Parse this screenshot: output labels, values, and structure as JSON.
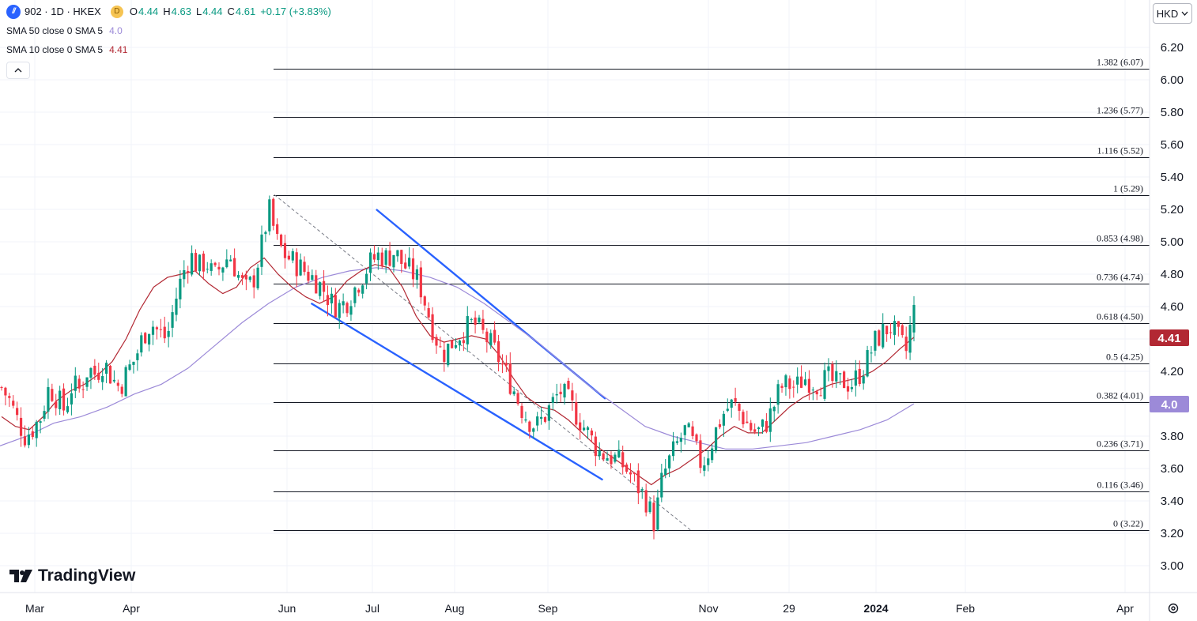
{
  "header": {
    "symbol_line": "902 · 1D · HKEX",
    "d_badge": "D",
    "open_label": "O",
    "open_value": "4.44",
    "high_label": "H",
    "high_value": "4.63",
    "low_label": "L",
    "low_value": "4.44",
    "close_label": "C",
    "close_value": "4.61",
    "change": "+0.17 (+3.83%)",
    "sma50_label": "SMA 50 close 0 SMA 5",
    "sma50_value": "4.0",
    "sma10_label": "SMA 10 close 0 SMA 5",
    "sma10_value": "4.41",
    "collapse_icon": "chevron-up-icon"
  },
  "currency_button": "HKD",
  "currency_chevron": "chevron-down-icon",
  "logo_text": "TradingView",
  "settings_icon": "gear-icon",
  "colors": {
    "up": "#089981",
    "down": "#f23645",
    "sma10": "#b22833",
    "sma50": "#9c8ad8",
    "trendline": "#2962ff",
    "fib_line": "#131722",
    "sma10_tag": "#b22833",
    "sma50_tag": "#9c8ad8"
  },
  "chart_data": {
    "type": "candlestick",
    "title": "902 · 1D · HKEX",
    "ylim": [
      2.88,
      6.32
    ],
    "y_ticks": [
      "6.20",
      "6.00",
      "5.80",
      "5.60",
      "5.40",
      "5.20",
      "5.00",
      "4.80",
      "4.60",
      "4.40",
      "4.20",
      "4.00",
      "3.80",
      "3.60",
      "3.40",
      "3.20",
      "3.00"
    ],
    "x_tick_labels": [
      {
        "label": "Mar",
        "bold": false
      },
      {
        "label": "Apr",
        "bold": false
      },
      {
        "label": "Jun",
        "bold": false
      },
      {
        "label": "Jul",
        "bold": false
      },
      {
        "label": "Aug",
        "bold": false
      },
      {
        "label": "Sep",
        "bold": false
      },
      {
        "label": "Nov",
        "bold": false
      },
      {
        "label": "29",
        "bold": false
      },
      {
        "label": "2024",
        "bold": true
      },
      {
        "label": "Feb",
        "bold": false
      },
      {
        "label": "Apr",
        "bold": false
      }
    ],
    "price_tags": [
      {
        "value": 4.41,
        "label": "4.41",
        "series": "SMA 10"
      },
      {
        "value": 4.0,
        "label": "4.0",
        "series": "SMA 50"
      }
    ],
    "fib_levels": [
      {
        "ratio": "1.382",
        "price": 6.07,
        "label": "1.382 (6.07)"
      },
      {
        "ratio": "1.236",
        "price": 5.77,
        "label": "1.236 (5.77)"
      },
      {
        "ratio": "1.116",
        "price": 5.52,
        "label": "1.116 (5.52)"
      },
      {
        "ratio": "1",
        "price": 5.29,
        "label": "1 (5.29)"
      },
      {
        "ratio": "0.853",
        "price": 4.98,
        "label": "0.853 (4.98)"
      },
      {
        "ratio": "0.736",
        "price": 4.74,
        "label": "0.736 (4.74)"
      },
      {
        "ratio": "0.618",
        "price": 4.5,
        "label": "0.618 (4.50)"
      },
      {
        "ratio": "0.5",
        "price": 4.25,
        "label": "0.5 (4.25)"
      },
      {
        "ratio": "0.382",
        "price": 4.01,
        "label": "0.382 (4.01)"
      },
      {
        "ratio": "0.236",
        "price": 3.71,
        "label": "0.236 (3.71)"
      },
      {
        "ratio": "0.116",
        "price": 3.46,
        "label": "0.116 (3.46)"
      },
      {
        "ratio": "0",
        "price": 3.22,
        "label": "0 (3.22)"
      }
    ],
    "candle_close_anchors": [
      4.1,
      4.02,
      3.9,
      3.8,
      3.85,
      3.92,
      4.1,
      4.04,
      3.96,
      4.12,
      4.08,
      4.22,
      4.18,
      4.26,
      4.16,
      4.1,
      4.2,
      4.28,
      4.42,
      4.5,
      4.44,
      4.4,
      4.62,
      4.8,
      4.92,
      4.84,
      4.88,
      4.78,
      4.86,
      4.92,
      4.8,
      4.7,
      4.76,
      4.96,
      5.2,
      5.0,
      4.92,
      4.88,
      4.84,
      4.8,
      4.76,
      4.7,
      4.62,
      4.6,
      4.64,
      4.72,
      4.8,
      4.88,
      4.92,
      4.9,
      4.94,
      4.86,
      4.82,
      4.76,
      4.6,
      4.44,
      4.3,
      4.36,
      4.42,
      4.46,
      4.5,
      4.44,
      4.38,
      4.3,
      4.2,
      4.1,
      3.98,
      3.9,
      3.86,
      3.92,
      4.0,
      4.08,
      4.02,
      3.94,
      3.86,
      3.78,
      3.7,
      3.68,
      3.66,
      3.62,
      3.56,
      3.48,
      3.4,
      3.26,
      3.54,
      3.66,
      3.76,
      3.84,
      3.74,
      3.62,
      3.72,
      3.86,
      3.96,
      4.0,
      3.94,
      3.86,
      3.82,
      3.86,
      3.96,
      4.1,
      4.12,
      4.1,
      4.16,
      4.14,
      4.12,
      4.16,
      4.12,
      4.14,
      4.12,
      4.18,
      4.26,
      4.38,
      4.44,
      4.48,
      4.4,
      4.32,
      4.61
    ],
    "sma10_anchors": [
      3.92,
      3.86,
      3.84,
      3.92,
      4.02,
      4.08,
      4.12,
      4.18,
      4.26,
      4.4,
      4.58,
      4.72,
      4.78,
      4.8,
      4.82,
      4.74,
      4.68,
      4.72,
      4.84,
      4.9,
      4.8,
      4.72,
      4.66,
      4.62,
      4.66,
      4.76,
      4.82,
      4.86,
      4.84,
      4.72,
      4.54,
      4.42,
      4.38,
      4.4,
      4.42,
      4.4,
      4.3,
      4.16,
      4.04,
      3.98,
      3.96,
      3.9,
      3.82,
      3.74,
      3.68,
      3.62,
      3.56,
      3.5,
      3.56,
      3.6,
      3.66,
      3.72,
      3.8,
      3.86,
      3.82,
      3.82,
      3.9,
      3.98,
      4.04,
      4.08,
      4.12,
      4.14,
      4.16,
      4.2,
      4.26,
      4.34,
      4.41
    ],
    "sma50_anchors": [
      3.74,
      3.8,
      3.88,
      3.92,
      3.98,
      4.06,
      4.12,
      4.22,
      4.36,
      4.5,
      4.62,
      4.72,
      4.78,
      4.82,
      4.84,
      4.82,
      4.78,
      4.72,
      4.62,
      4.5,
      4.38,
      4.24,
      4.1,
      3.98,
      3.86,
      3.8,
      3.76,
      3.72,
      3.72,
      3.74,
      3.76,
      3.8,
      3.84,
      3.9,
      4.0
    ],
    "drawings": [
      {
        "type": "trendline",
        "label": "upper channel line",
        "from": {
          "date": "2023-07-01",
          "price": 5.2
        },
        "to": {
          "date": "2023-09-20",
          "price": 4.03
        }
      },
      {
        "type": "trendline",
        "label": "lower channel line",
        "from": {
          "date": "2023-06-08",
          "price": 4.62
        },
        "to": {
          "date": "2023-09-19",
          "price": 3.53
        }
      },
      {
        "type": "trendline",
        "label": "dashed fib anchor",
        "from": {
          "date": "2023-05-26",
          "price": 5.29
        },
        "to": {
          "date": "2023-10-20",
          "price": 3.22
        }
      }
    ]
  }
}
